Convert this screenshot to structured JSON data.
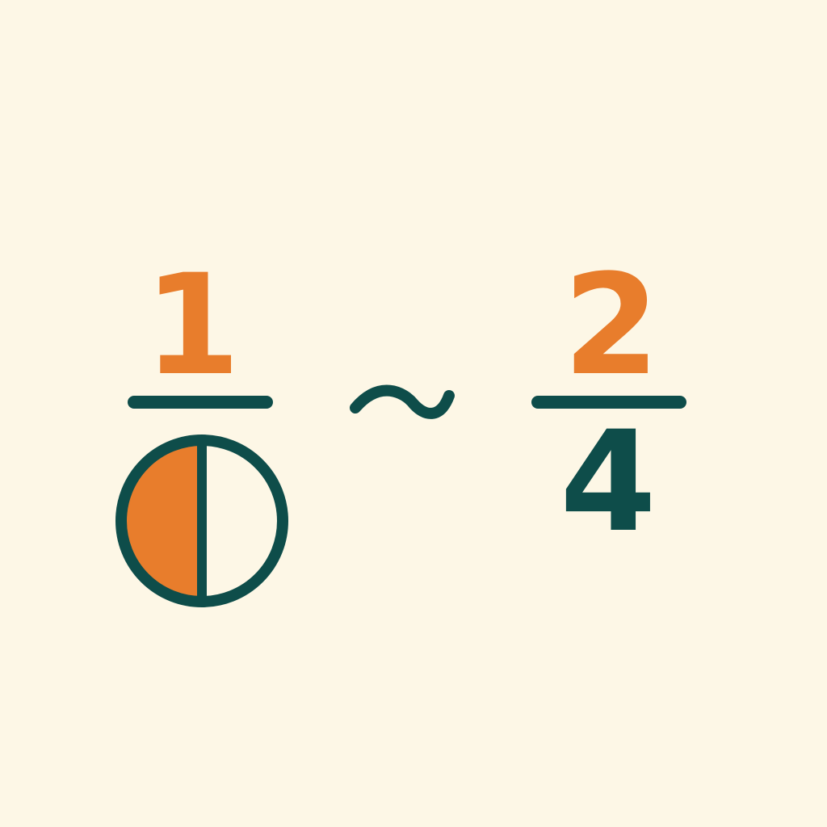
{
  "left_fraction": {
    "numerator": "1",
    "denominator_icon": "half-shaded-circle",
    "shaded_portion": 0.5
  },
  "relation_symbol": "~",
  "right_fraction": {
    "numerator": "2",
    "denominator": "4"
  },
  "colors": {
    "background": "#fdf7e6",
    "accent_orange": "#e87d2c",
    "dark_teal": "#0e4d4a",
    "circle_fill": "#fdf7e6"
  }
}
